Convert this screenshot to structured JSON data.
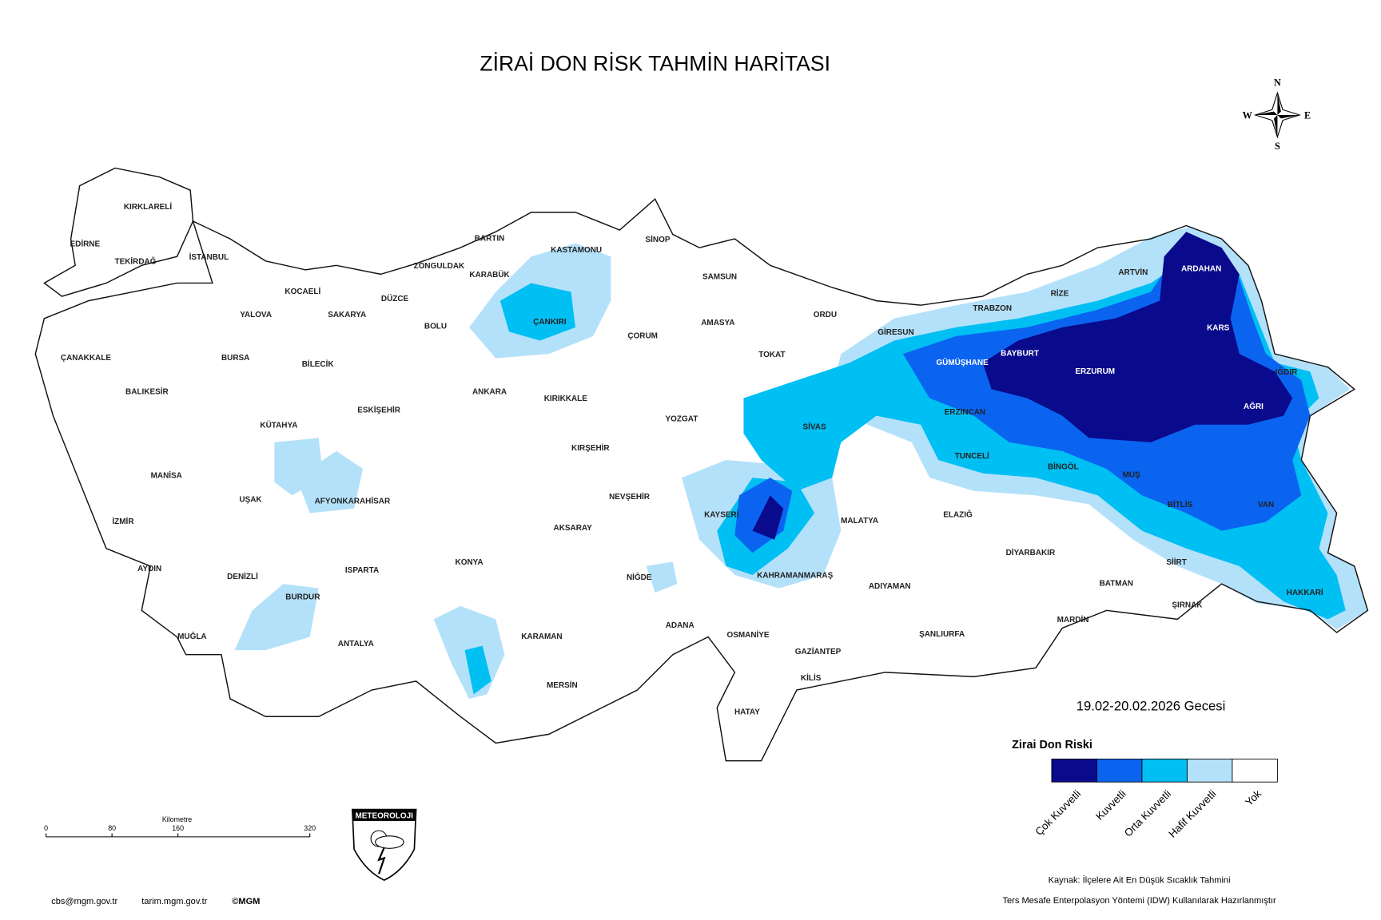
{
  "title": "ZİRAİ DON RİSK TAHMİN HARİTASI",
  "compass": {
    "n": "N",
    "w": "W",
    "e": "E",
    "s": "S"
  },
  "provinces": [
    "KIRKLARELİ",
    "EDİRNE",
    "TEKİRDAĞ",
    "İSTANBUL",
    "KOCAELİ",
    "YALOVA",
    "SAKARYA",
    "DÜZCE",
    "ZONGULDAK",
    "BARTIN",
    "KARABÜK",
    "KASTAMONU",
    "SİNOP",
    "SAMSUN",
    "ÇANKIRI",
    "BOLU",
    "ÇANAKKALE",
    "BURSA",
    "BİLECİK",
    "BALIKESİR",
    "ESKİŞEHİR",
    "ANKARA",
    "KIRIKKALE",
    "ÇORUM",
    "AMASYA",
    "TOKAT",
    "ORDU",
    "GİRESUN",
    "TRABZON",
    "RİZE",
    "ARTVİN",
    "ARDAHAN",
    "KARS",
    "IĞDIR",
    "AĞRI",
    "ERZURUM",
    "BAYBURT",
    "GÜMÜŞHANE",
    "ERZİNCAN",
    "SİVAS",
    "YOZGAT",
    "KIRŞEHİR",
    "KÜTAHYA",
    "MANİSA",
    "UŞAK",
    "AFYONKARAHİSAR",
    "İZMİR",
    "AYDIN",
    "DENİZLİ",
    "MUĞLA",
    "BURDUR",
    "ISPARTA",
    "ANTALYA",
    "KONYA",
    "KARAMAN",
    "MERSİN",
    "AKSARAY",
    "NEVŞEHİR",
    "NİĞDE",
    "KAYSERİ",
    "ADANA",
    "OSMANİYE",
    "HATAY",
    "KİLİS",
    "GAZİANTEP",
    "KAHRAMANMARAŞ",
    "ADIYAMAN",
    "MALATYA",
    "ŞANLIURFA",
    "TUNCELİ",
    "BİNGÖL",
    "ELAZIĞ",
    "DİYARBAKIR",
    "MUŞ",
    "BİTLİS",
    "VAN",
    "SİİRT",
    "BATMAN",
    "MARDİN",
    "ŞIRNAK",
    "HAKKARİ"
  ],
  "date": "19.02-20.02.2026 Gecesi",
  "legend": {
    "title": "Zirai Don Riski",
    "items": [
      {
        "label": "Çok Kuvvetli",
        "color": "#0a0a8c"
      },
      {
        "label": "Kuvvetli",
        "color": "#0a64f0"
      },
      {
        "label": "Orta Kuvvetli",
        "color": "#00bff3"
      },
      {
        "label": "Hafif Kuvvetli",
        "color": "#b4e1fa"
      },
      {
        "label": "Yok",
        "color": "#ffffff"
      }
    ]
  },
  "scale_bar": {
    "unit": "Kilometre",
    "ticks": [
      0,
      80,
      160,
      320
    ]
  },
  "logo": "METEOROLOJI",
  "footer": {
    "email": "cbs@mgm.gov.tr",
    "site": "tarim.mgm.gov.tr",
    "copyright": "©MGM"
  },
  "source": {
    "line1": "Kaynak: İlçelere Ait En Düşük Sıcaklık Tahmini",
    "line2": "Ters Mesafe Enterpolasyon Yöntemi (IDW) Kullanılarak Hazırlanmıştır"
  }
}
